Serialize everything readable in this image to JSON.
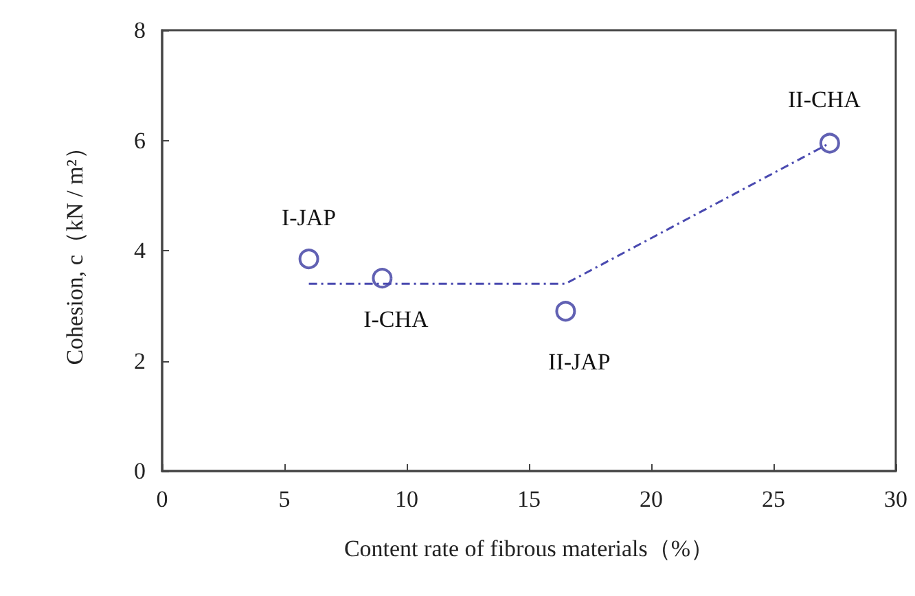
{
  "chart_data": {
    "type": "scatter",
    "xlabel": "Content rate of fibrous materials（%）",
    "ylabel": "Cohesion, c（kN / m²）",
    "x": [
      6,
      9,
      16.5,
      27.3
    ],
    "series": [
      {
        "color": "#3a3aa0",
        "marker": "circle",
        "values": [
          3.85,
          3.5,
          2.9,
          5.95
        ]
      },
      {
        "type": "line",
        "color": "#4a4ab0",
        "marker": "none",
        "line_style": "dashed",
        "x": [
          6,
          16.5,
          27.3
        ],
        "values": [
          3.4,
          3.4,
          5.95
        ]
      }
    ],
    "annotations": [
      {
        "text": "I-JAP",
        "x": 6,
        "y": 3.85
      },
      {
        "text": "I-CHA",
        "x": 9,
        "y": 3.5
      },
      {
        "text": "II-JAP",
        "x": 16.5,
        "y": 2.9
      },
      {
        "text": "II-CHA",
        "x": 27.3,
        "y": 5.95
      }
    ],
    "xlim": [
      0,
      30
    ],
    "xticks": [
      0,
      5,
      10,
      15,
      20,
      25,
      30
    ],
    "ylim": [
      0,
      8
    ],
    "yticks": [
      0,
      2,
      4,
      6,
      8
    ]
  }
}
